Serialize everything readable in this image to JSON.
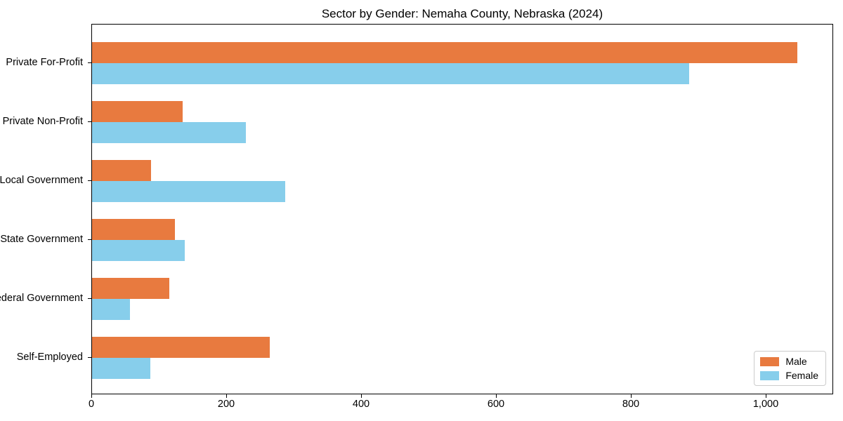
{
  "figure": {
    "background": "#ffffff",
    "spine_color": "#000000",
    "legend_border_color": "#cccccc"
  },
  "chart_data": {
    "type": "bar",
    "orientation": "horizontal",
    "title": "Sector by Gender: Nemaha County, Nebraska (2024)",
    "xlabel": "",
    "ylabel": "",
    "grid": false,
    "legend_position": "lower right",
    "categories": [
      "Private For-Profit",
      "Private Non-Profit",
      "Local Government",
      "State Government",
      "Federal Government",
      "Self-Employed"
    ],
    "series": [
      {
        "name": "Male",
        "color": "#E87A3F",
        "values": [
          1046,
          134,
          87,
          123,
          115,
          264
        ]
      },
      {
        "name": "Female",
        "color": "#87CEEB",
        "values": [
          885,
          228,
          286,
          137,
          56,
          86
        ]
      }
    ],
    "xlim": [
      0,
      1100
    ],
    "xticks": [
      {
        "value": 0,
        "label": "0"
      },
      {
        "value": 200,
        "label": "200"
      },
      {
        "value": 400,
        "label": "400"
      },
      {
        "value": 600,
        "label": "600"
      },
      {
        "value": 800,
        "label": "800"
      },
      {
        "value": 1000,
        "label": "1,000"
      }
    ]
  }
}
